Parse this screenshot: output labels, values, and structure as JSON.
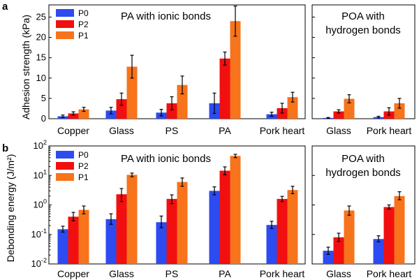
{
  "colors": {
    "P0": "#2c4bf0",
    "P2": "#f20f0f",
    "P1": "#f7731c"
  },
  "legend": [
    {
      "key": "P0",
      "label": "P0"
    },
    {
      "key": "P2",
      "label": "P2"
    },
    {
      "key": "P1",
      "label": "P1"
    }
  ],
  "panels": {
    "a": {
      "letter": "a",
      "ylabel": "Adhesion strength (kPa)",
      "yticks": [
        "0",
        "5",
        "10",
        "15",
        "20",
        "25"
      ],
      "left_title": "PA with ionic bonds",
      "right_title_1": "POA with",
      "right_title_2": "hydrogen bonds",
      "left_categories": [
        "Copper",
        "Glass",
        "PS",
        "PA",
        "Pork heart"
      ],
      "right_categories": [
        "Glass",
        "Pork heart"
      ]
    },
    "b": {
      "letter": "b",
      "ylabel": "Debonding energy (J/m²)",
      "yticks": [
        "10-2",
        "10-1",
        "100",
        "101",
        "102"
      ],
      "left_title": "PA with ionic bonds",
      "right_title_1": "POA with",
      "right_title_2": "hydrogen bonds",
      "left_categories": [
        "Copper",
        "Glass",
        "PS",
        "PA",
        "Pork heart"
      ],
      "right_categories": [
        "Glass",
        "Pork heart"
      ]
    }
  },
  "chart_data": [
    {
      "type": "bar",
      "panel": "a",
      "ylabel": "Adhesion strength (kPa)",
      "ylim": [
        0,
        28
      ],
      "scale": "linear",
      "groups": [
        {
          "title": "PA with ionic bonds",
          "categories": [
            "Copper",
            "Glass",
            "PS",
            "PA",
            "Pork heart"
          ],
          "series": [
            {
              "name": "P0",
              "values": [
                0.6,
                2.0,
                1.5,
                3.8,
                1.1
              ],
              "errors": [
                0.3,
                0.8,
                0.8,
                2.5,
                0.5
              ]
            },
            {
              "name": "P2",
              "values": [
                1.3,
                4.8,
                3.8,
                14.8,
                2.6
              ],
              "errors": [
                0.4,
                1.5,
                1.6,
                1.6,
                1.2
              ]
            },
            {
              "name": "P1",
              "values": [
                2.3,
                12.8,
                8.3,
                24.0,
                5.3
              ],
              "errors": [
                0.5,
                2.8,
                2.2,
                3.7,
                1.2
              ]
            }
          ]
        },
        {
          "title": "POA with hydrogen bonds",
          "categories": [
            "Glass",
            "Pork heart"
          ],
          "series": [
            {
              "name": "P0",
              "values": [
                0.2,
                0.4
              ],
              "errors": [
                0.1,
                0.2
              ]
            },
            {
              "name": "P2",
              "values": [
                1.8,
                1.8
              ],
              "errors": [
                0.4,
                0.9
              ]
            },
            {
              "name": "P1",
              "values": [
                4.9,
                3.8
              ],
              "errors": [
                1.0,
                1.2
              ]
            }
          ]
        }
      ]
    },
    {
      "type": "bar",
      "panel": "b",
      "ylabel": "Debonding energy (J/m²)",
      "ylim": [
        0.01,
        100
      ],
      "scale": "log",
      "groups": [
        {
          "title": "PA with ionic bonds",
          "categories": [
            "Copper",
            "Glass",
            "PS",
            "PA",
            "Pork heart"
          ],
          "series": [
            {
              "name": "P0",
              "values": [
                0.15,
                0.33,
                0.26,
                3.0,
                0.21
              ],
              "err_low": [
                0.12,
                0.22,
                0.17,
                2.2,
                0.16
              ],
              "err_high": [
                0.19,
                0.5,
                0.42,
                4.1,
                0.28
              ]
            },
            {
              "name": "P2",
              "values": [
                0.4,
                2.3,
                1.6,
                14.5,
                1.6
              ],
              "err_low": [
                0.29,
                1.3,
                1.1,
                10.5,
                1.3
              ],
              "err_high": [
                0.56,
                3.6,
                2.2,
                19.5,
                1.95
              ]
            },
            {
              "name": "P1",
              "values": [
                0.68,
                10.5,
                6.0,
                46.0,
                3.2
              ],
              "err_low": [
                0.5,
                9.0,
                4.3,
                40.0,
                2.4
              ],
              "err_high": [
                0.92,
                12.0,
                8.2,
                52.0,
                4.3
              ]
            }
          ]
        },
        {
          "title": "POA with hydrogen bonds",
          "categories": [
            "Glass",
            "Pork heart"
          ],
          "series": [
            {
              "name": "P0",
              "values": [
                0.028,
                0.07
              ],
              "err_low": [
                0.021,
                0.056
              ],
              "err_high": [
                0.037,
                0.09
              ]
            },
            {
              "name": "P2",
              "values": [
                0.08,
                0.85
              ],
              "err_low": [
                0.058,
                0.72
              ],
              "err_high": [
                0.11,
                1.0
              ]
            },
            {
              "name": "P1",
              "values": [
                0.65,
                2.0
              ],
              "err_low": [
                0.45,
                1.5
              ],
              "err_high": [
                0.92,
                2.8
              ]
            }
          ]
        }
      ]
    }
  ]
}
